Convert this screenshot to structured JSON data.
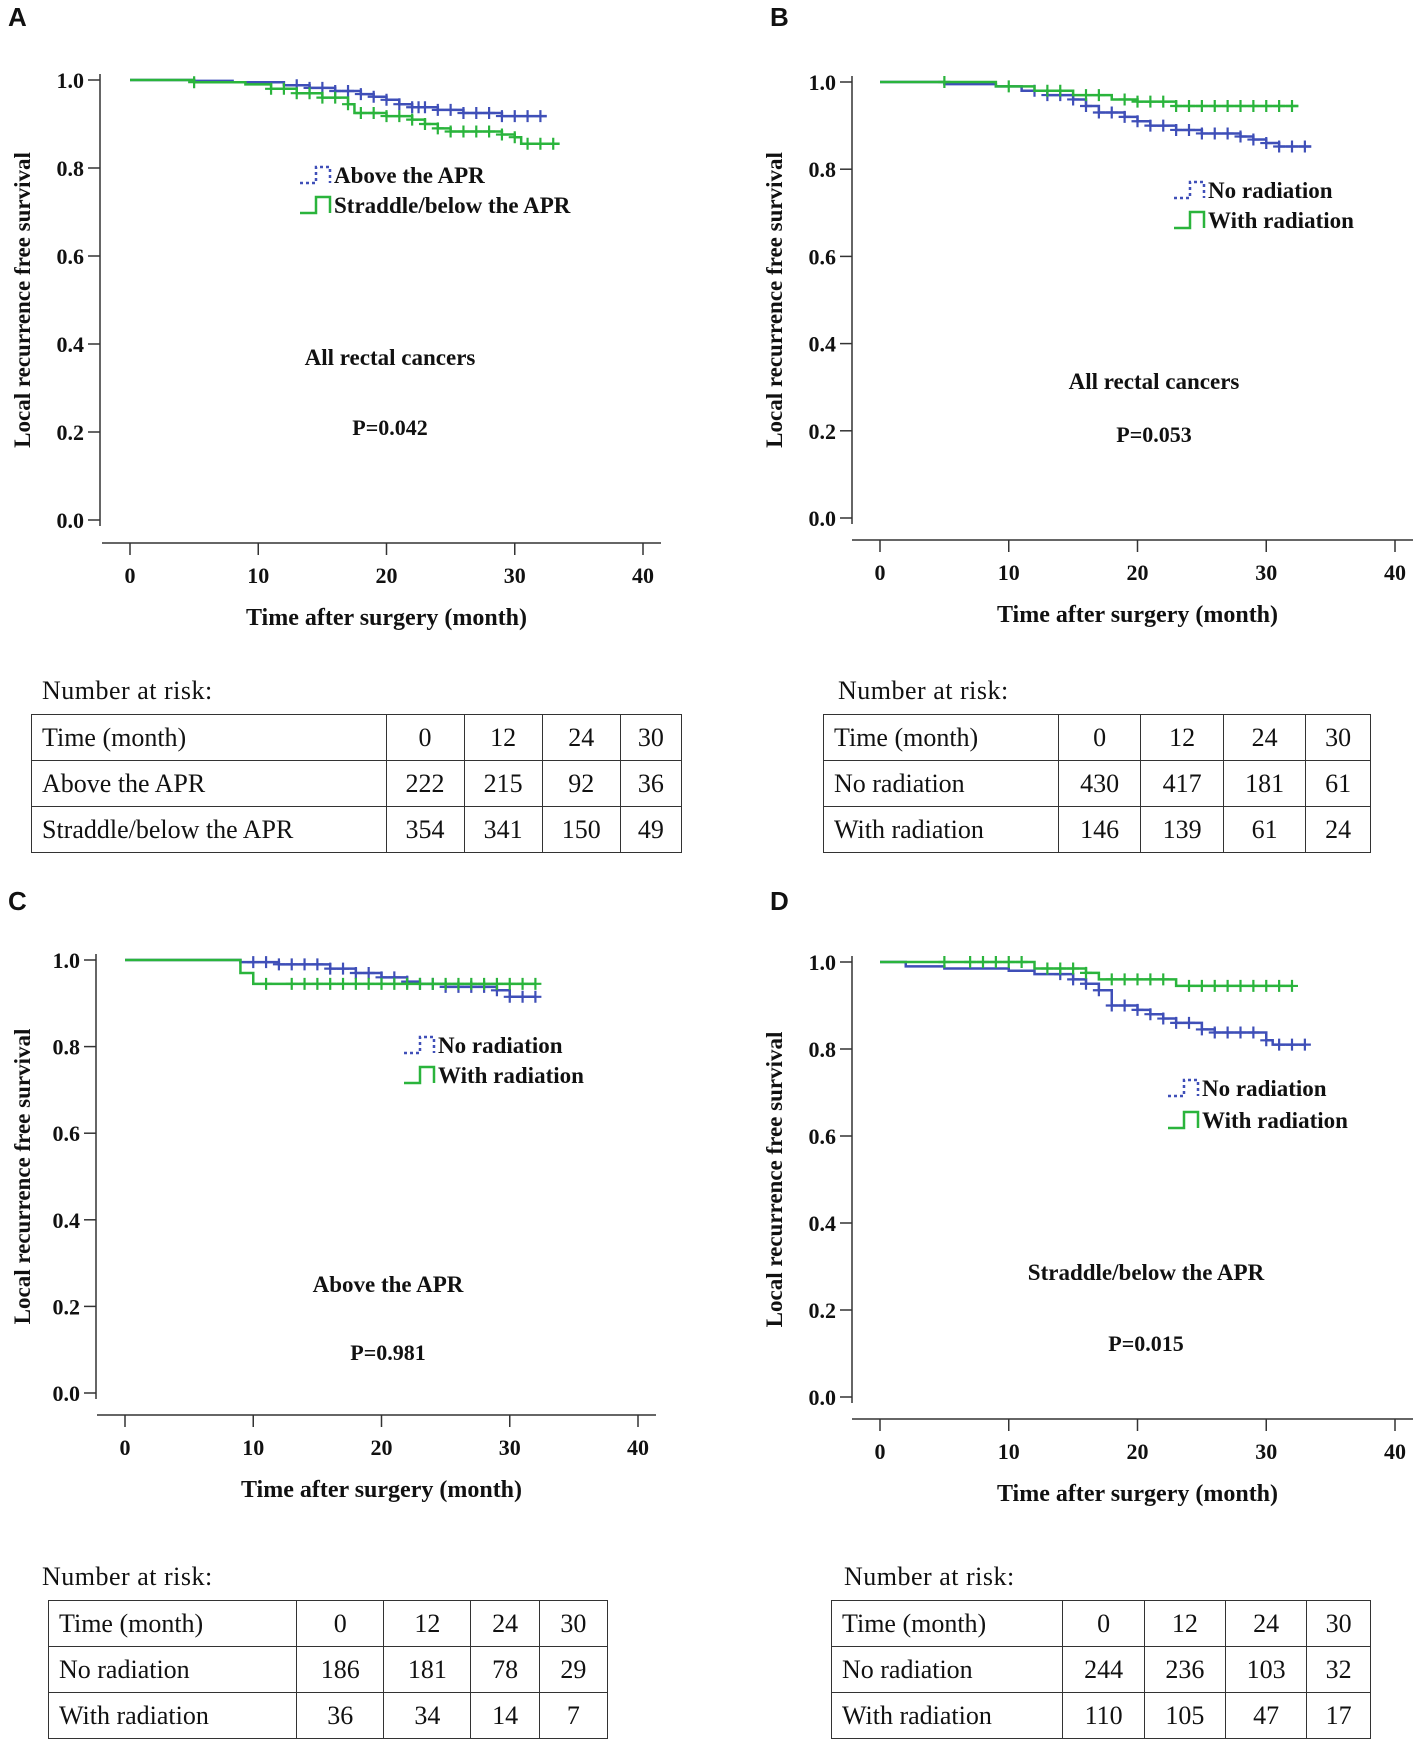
{
  "colors": {
    "series1": "#3f4fb8",
    "series2": "#2ab43c",
    "axis": "#333333",
    "text": "#111111"
  },
  "panels": [
    {
      "letter": "A",
      "chart_data": {
        "type": "line",
        "subtype": "kaplan-meier",
        "title": "All rectal cancers",
        "pvalue": "P=0.042",
        "xlabel": "Time after surgery (month)",
        "ylabel": "Local recurrence free survival",
        "xlim": [
          0,
          40
        ],
        "ylim": [
          0,
          1
        ],
        "xticks": [
          0,
          10,
          20,
          30,
          40
        ],
        "yticks": [
          0.0,
          0.2,
          0.4,
          0.6,
          0.8,
          1.0
        ],
        "xtick_labels": [
          "0",
          "10",
          "20",
          "30",
          "40"
        ],
        "ytick_labels": [
          "0.0",
          "0.2",
          "0.4",
          "0.6",
          "0.8",
          "1.0"
        ],
        "legend_position": "upper-middle",
        "series": [
          {
            "name": "Above the APR",
            "style": "dotted",
            "steps": [
              [
                0,
                1.0
              ],
              [
                5,
                0.998
              ],
              [
                8,
                0.995
              ],
              [
                12,
                0.988
              ],
              [
                14,
                0.982
              ],
              [
                16,
                0.975
              ],
              [
                18,
                0.968
              ],
              [
                19,
                0.962
              ],
              [
                20,
                0.955
              ],
              [
                21,
                0.945
              ],
              [
                22,
                0.938
              ],
              [
                24,
                0.932
              ],
              [
                26,
                0.925
              ],
              [
                29,
                0.918
              ],
              [
                32.5,
                0.918
              ]
            ],
            "censors": [
              13,
              14,
              15,
              16,
              17,
              18,
              19,
              20,
              21,
              22,
              22.5,
              23,
              24,
              25,
              26,
              27,
              28,
              29,
              30,
              31,
              32
            ]
          },
          {
            "name": "Straddle/below the APR",
            "style": "solid",
            "steps": [
              [
                0,
                1.0
              ],
              [
                5,
                0.995
              ],
              [
                9,
                0.99
              ],
              [
                11,
                0.98
              ],
              [
                13,
                0.97
              ],
              [
                15,
                0.96
              ],
              [
                17,
                0.945
              ],
              [
                17.5,
                0.925
              ],
              [
                20,
                0.918
              ],
              [
                22,
                0.91
              ],
              [
                23,
                0.9
              ],
              [
                24,
                0.89
              ],
              [
                25,
                0.883
              ],
              [
                29,
                0.876
              ],
              [
                30,
                0.87
              ],
              [
                30.5,
                0.855
              ],
              [
                33.5,
                0.855
              ]
            ],
            "censors": [
              5,
              11,
              12,
              13,
              14,
              15,
              16,
              17,
              18,
              19,
              20,
              21,
              22,
              23,
              24,
              25,
              26,
              27,
              28,
              29,
              30,
              31,
              32,
              33
            ]
          }
        ]
      },
      "risk": {
        "title": "Number at risk:",
        "header": [
          "Time (month)",
          "0",
          "12",
          "24",
          "30"
        ],
        "rows": [
          [
            "Above the APR",
            "222",
            "215",
            "92",
            "36"
          ],
          [
            "Straddle/below the APR",
            "354",
            "341",
            "150",
            "49"
          ]
        ]
      }
    },
    {
      "letter": "B",
      "chart_data": {
        "type": "line",
        "subtype": "kaplan-meier",
        "title": "All rectal cancers",
        "pvalue": "P=0.053",
        "xlabel": "Time after surgery (month)",
        "ylabel": "Local recurrence free survival",
        "xlim": [
          0,
          40
        ],
        "ylim": [
          0,
          1
        ],
        "xticks": [
          0,
          10,
          20,
          30,
          40
        ],
        "yticks": [
          0.0,
          0.2,
          0.4,
          0.6,
          0.8,
          1.0
        ],
        "xtick_labels": [
          "0",
          "10",
          "20",
          "30",
          "40"
        ],
        "ytick_labels": [
          "0.0",
          "0.2",
          "0.4",
          "0.6",
          "0.8",
          "1.0"
        ],
        "legend_position": "right",
        "series": [
          {
            "name": "No radiation",
            "style": "dotted",
            "steps": [
              [
                0,
                1.0
              ],
              [
                5,
                0.995
              ],
              [
                9,
                0.99
              ],
              [
                11,
                0.98
              ],
              [
                13,
                0.97
              ],
              [
                15,
                0.96
              ],
              [
                16,
                0.945
              ],
              [
                17,
                0.93
              ],
              [
                19,
                0.92
              ],
              [
                20,
                0.91
              ],
              [
                21,
                0.9
              ],
              [
                23,
                0.89
              ],
              [
                25,
                0.882
              ],
              [
                28,
                0.875
              ],
              [
                29,
                0.868
              ],
              [
                30,
                0.86
              ],
              [
                31,
                0.852
              ],
              [
                33.5,
                0.852
              ]
            ],
            "censors": [
              12,
              13,
              14,
              15,
              16,
              17,
              18,
              19,
              20,
              21,
              22,
              23,
              24,
              25,
              26,
              27,
              28,
              29,
              30,
              31,
              32,
              33
            ]
          },
          {
            "name": "With radiation",
            "style": "solid",
            "steps": [
              [
                0,
                1.0
              ],
              [
                9,
                0.99
              ],
              [
                12,
                0.98
              ],
              [
                15,
                0.97
              ],
              [
                18,
                0.96
              ],
              [
                20,
                0.955
              ],
              [
                23,
                0.945
              ],
              [
                32.5,
                0.945
              ]
            ],
            "censors": [
              5,
              10,
              13,
              14,
              16,
              17,
              19,
              20,
              21,
              22,
              23,
              24,
              25,
              26,
              27,
              28,
              29,
              30,
              31,
              32
            ]
          }
        ]
      },
      "risk": {
        "title": "Number at risk:",
        "header": [
          "Time (month)",
          "0",
          "12",
          "24",
          "30"
        ],
        "rows": [
          [
            "No radiation",
            "430",
            "417",
            "181",
            "61"
          ],
          [
            "With radiation",
            "146",
            "139",
            "61",
            "24"
          ]
        ]
      }
    },
    {
      "letter": "C",
      "chart_data": {
        "type": "line",
        "subtype": "kaplan-meier",
        "title": "Above the APR",
        "pvalue": "P=0.981",
        "xlabel": "Time after surgery (month)",
        "ylabel": "Local recurrence free survival",
        "xlim": [
          0,
          40
        ],
        "ylim": [
          0,
          1
        ],
        "xticks": [
          0,
          10,
          20,
          30,
          40
        ],
        "yticks": [
          0.0,
          0.2,
          0.4,
          0.6,
          0.8,
          1.0
        ],
        "xtick_labels": [
          "0",
          "10",
          "20",
          "30",
          "40"
        ],
        "ytick_labels": [
          "0.0",
          "0.2",
          "0.4",
          "0.6",
          "0.8",
          "1.0"
        ],
        "legend_position": "upper-right",
        "series": [
          {
            "name": "No radiation",
            "style": "dotted",
            "steps": [
              [
                0,
                1.0
              ],
              [
                9,
                0.995
              ],
              [
                12,
                0.99
              ],
              [
                16,
                0.98
              ],
              [
                18,
                0.97
              ],
              [
                20,
                0.96
              ],
              [
                22,
                0.95
              ],
              [
                23,
                0.945
              ],
              [
                25,
                0.938
              ],
              [
                29,
                0.93
              ],
              [
                30,
                0.915
              ],
              [
                32,
                0.915
              ]
            ],
            "censors": [
              10,
              11,
              12,
              13,
              14,
              15,
              16,
              17,
              18,
              19,
              20,
              21,
              22,
              23,
              24,
              25,
              26,
              27,
              28,
              29,
              30,
              31,
              32
            ]
          },
          {
            "name": "With radiation",
            "style": "solid",
            "steps": [
              [
                0,
                1.0
              ],
              [
                9,
                0.97
              ],
              [
                10,
                0.945
              ],
              [
                32,
                0.945
              ]
            ],
            "censors": [
              11,
              13,
              14,
              15,
              16,
              17,
              18,
              19,
              20,
              21,
              22,
              23,
              24,
              25,
              26,
              27,
              28,
              29,
              30,
              31,
              32
            ]
          }
        ]
      },
      "risk": {
        "title": "Number at risk:",
        "header": [
          "Time (month)",
          "0",
          "12",
          "24",
          "30"
        ],
        "rows": [
          [
            "No radiation",
            "186",
            "181",
            "78",
            "29"
          ],
          [
            "With radiation",
            "36",
            "34",
            "14",
            "7"
          ]
        ]
      }
    },
    {
      "letter": "D",
      "chart_data": {
        "type": "line",
        "subtype": "kaplan-meier",
        "title": "Straddle/below the APR",
        "pvalue": "P=0.015",
        "xlabel": "Time after surgery (month)",
        "ylabel": "Local recurrence free survival",
        "xlim": [
          0,
          40
        ],
        "ylim": [
          0,
          1
        ],
        "xticks": [
          0,
          10,
          20,
          30,
          40
        ],
        "yticks": [
          0.0,
          0.2,
          0.4,
          0.6,
          0.8,
          1.0
        ],
        "xtick_labels": [
          "0",
          "10",
          "20",
          "30",
          "40"
        ],
        "ytick_labels": [
          "0.0",
          "0.2",
          "0.4",
          "0.6",
          "0.8",
          "1.0"
        ],
        "legend_position": "right",
        "series": [
          {
            "name": "No radiation",
            "style": "dotted",
            "steps": [
              [
                0,
                1.0
              ],
              [
                2,
                0.99
              ],
              [
                5,
                0.985
              ],
              [
                10,
                0.98
              ],
              [
                12,
                0.972
              ],
              [
                15,
                0.96
              ],
              [
                16,
                0.95
              ],
              [
                17,
                0.935
              ],
              [
                18,
                0.9
              ],
              [
                20,
                0.89
              ],
              [
                21,
                0.88
              ],
              [
                22,
                0.87
              ],
              [
                23,
                0.86
              ],
              [
                25,
                0.845
              ],
              [
                26,
                0.838
              ],
              [
                30,
                0.82
              ],
              [
                30.5,
                0.81
              ],
              [
                33,
                0.81
              ]
            ],
            "censors": [
              14,
              15,
              16,
              17,
              18,
              19,
              20,
              21,
              22,
              23,
              24,
              25,
              26,
              27,
              28,
              29,
              30,
              31,
              32,
              33
            ]
          },
          {
            "name": "With radiation",
            "style": "solid",
            "steps": [
              [
                0,
                1.0
              ],
              [
                12,
                0.985
              ],
              [
                16,
                0.975
              ],
              [
                17,
                0.96
              ],
              [
                23,
                0.945
              ],
              [
                32,
                0.945
              ]
            ],
            "censors": [
              5,
              7,
              8,
              9,
              10,
              11,
              13,
              14,
              15,
              16,
              18,
              19,
              20,
              21,
              22,
              24,
              25,
              26,
              27,
              28,
              29,
              30,
              31,
              32
            ]
          }
        ]
      },
      "risk": {
        "title": "Number at risk:",
        "header": [
          "Time (month)",
          "0",
          "12",
          "24",
          "30"
        ],
        "rows": [
          [
            "No radiation",
            "244",
            "236",
            "103",
            "32"
          ],
          [
            "With radiation",
            "110",
            "105",
            "47",
            "17"
          ]
        ]
      }
    }
  ]
}
